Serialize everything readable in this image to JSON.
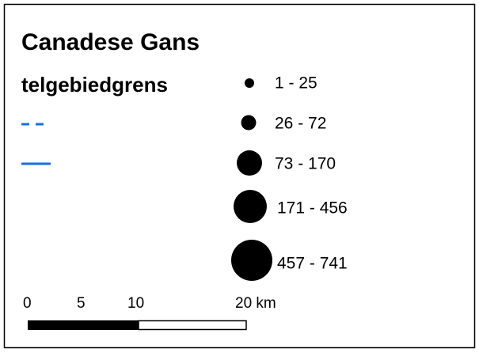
{
  "legend": {
    "title": "Canadese Gans",
    "subtitle": "telgebiedgrens",
    "classes": [
      "1 - 25",
      "26 - 72",
      "73 - 170",
      "171 - 456",
      "457 - 741"
    ]
  },
  "scalebar": {
    "labels": [
      "0",
      "5",
      "10",
      "20 km"
    ]
  }
}
